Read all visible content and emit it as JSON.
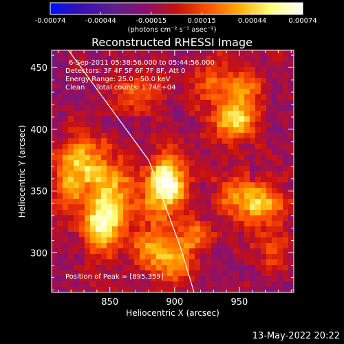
{
  "colorbar": {
    "ticks": [
      "-0.00074",
      "-0.00044",
      "-0.00015",
      "0.00015",
      "0.00044",
      "0.00074"
    ],
    "unit_label": "(photons cm⁻² s⁻¹ asec⁻²)",
    "colormap": [
      "#0010ff",
      "#3a10b0",
      "#5a208a",
      "#8a1070",
      "#c81010",
      "#ff5000",
      "#ffb000",
      "#ffff80",
      "#ffffff"
    ]
  },
  "title": "Reconstructed RHESSI Image",
  "info": {
    "line1": "6-Sep-2011 05:38:56.000 to 05:44:56.000",
    "line2": "Detectors: 3F 4F 5F 6F 7F 8F, Att 0",
    "line3": "Energy Range: 25.0 - 50.0 keV",
    "line4": "Clean     Total counts: 1.74E+04",
    "peak": "Position of Peak = [895,359]"
  },
  "timestamp": "13-May-2022 20:22",
  "chart_data": {
    "type": "heatmap",
    "title": "Reconstructed RHESSI Image",
    "xlabel": "Heliocentric X (arcsec)",
    "ylabel": "Heliocentric Y (arcsec)",
    "xlim": [
      805,
      992
    ],
    "ylim": [
      268,
      464
    ],
    "xticks": [
      850,
      900,
      950
    ],
    "yticks": [
      300,
      350,
      400,
      450
    ],
    "color_range": [
      -0.00074,
      0.00074
    ],
    "sources": [
      {
        "x": 895,
        "y": 359,
        "amp": 0.00074,
        "sx": 9,
        "sy": 14
      },
      {
        "x": 885,
        "y": 340,
        "amp": 0.0003,
        "sx": 14,
        "sy": 22
      },
      {
        "x": 850,
        "y": 345,
        "amp": 0.00055,
        "sx": 12,
        "sy": 20
      },
      {
        "x": 830,
        "y": 375,
        "amp": 0.0005,
        "sx": 12,
        "sy": 16
      },
      {
        "x": 842,
        "y": 320,
        "amp": 0.0005,
        "sx": 10,
        "sy": 14
      },
      {
        "x": 817,
        "y": 355,
        "amp": 0.00035,
        "sx": 8,
        "sy": 14
      },
      {
        "x": 946,
        "y": 407,
        "amp": 0.0006,
        "sx": 12,
        "sy": 10
      },
      {
        "x": 953,
        "y": 433,
        "amp": 0.00035,
        "sx": 10,
        "sy": 10
      },
      {
        "x": 964,
        "y": 340,
        "amp": 0.00055,
        "sx": 14,
        "sy": 12
      },
      {
        "x": 943,
        "y": 350,
        "amp": 0.00025,
        "sx": 10,
        "sy": 10
      },
      {
        "x": 900,
        "y": 292,
        "amp": 0.0005,
        "sx": 10,
        "sy": 12
      },
      {
        "x": 880,
        "y": 300,
        "amp": 0.00035,
        "sx": 10,
        "sy": 10
      },
      {
        "x": 930,
        "y": 437,
        "amp": 0.0003,
        "sx": 12,
        "sy": 14
      },
      {
        "x": 917,
        "y": 315,
        "amp": 0.0003,
        "sx": 10,
        "sy": 10
      },
      {
        "x": 870,
        "y": 430,
        "amp": 0.00025,
        "sx": 14,
        "sy": 12
      },
      {
        "x": 975,
        "y": 300,
        "amp": 0.00022,
        "sx": 12,
        "sy": 12
      }
    ],
    "background": -0.00012,
    "limb": [
      [
        818,
        464
      ],
      [
        880,
        375
      ],
      [
        905,
        303
      ],
      [
        915,
        268
      ]
    ],
    "peak": [
      895,
      359
    ]
  }
}
